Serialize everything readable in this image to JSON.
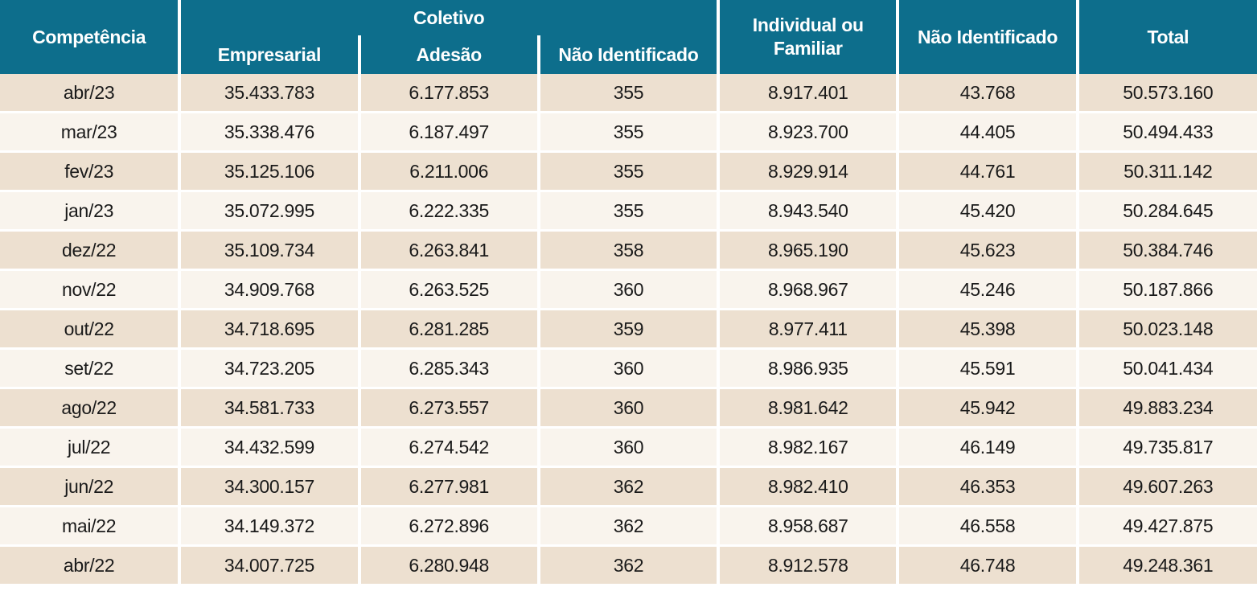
{
  "table": {
    "headers": {
      "competencia": "Competência",
      "coletivo_group": "Coletivo",
      "empresarial": "Empresarial",
      "adesao": "Adesão",
      "coletivo_nao_identificado": "Não Identificado",
      "individual_familiar": "Individual ou Familiar",
      "nao_identificado": "Não Identificado",
      "total": "Total"
    },
    "rows": [
      [
        "abr/23",
        "35.433.783",
        "6.177.853",
        "355",
        "8.917.401",
        "43.768",
        "50.573.160"
      ],
      [
        "mar/23",
        "35.338.476",
        "6.187.497",
        "355",
        "8.923.700",
        "44.405",
        "50.494.433"
      ],
      [
        "fev/23",
        "35.125.106",
        "6.211.006",
        "355",
        "8.929.914",
        "44.761",
        "50.311.142"
      ],
      [
        "jan/23",
        "35.072.995",
        "6.222.335",
        "355",
        "8.943.540",
        "45.420",
        "50.284.645"
      ],
      [
        "dez/22",
        "35.109.734",
        "6.263.841",
        "358",
        "8.965.190",
        "45.623",
        "50.384.746"
      ],
      [
        "nov/22",
        "34.909.768",
        "6.263.525",
        "360",
        "8.968.967",
        "45.246",
        "50.187.866"
      ],
      [
        "out/22",
        "34.718.695",
        "6.281.285",
        "359",
        "8.977.411",
        "45.398",
        "50.023.148"
      ],
      [
        "set/22",
        "34.723.205",
        "6.285.343",
        "360",
        "8.986.935",
        "45.591",
        "50.041.434"
      ],
      [
        "ago/22",
        "34.581.733",
        "6.273.557",
        "360",
        "8.981.642",
        "45.942",
        "49.883.234"
      ],
      [
        "jul/22",
        "34.432.599",
        "6.274.542",
        "360",
        "8.982.167",
        "46.149",
        "49.735.817"
      ],
      [
        "jun/22",
        "34.300.157",
        "6.277.981",
        "362",
        "8.982.410",
        "46.353",
        "49.607.263"
      ],
      [
        "mai/22",
        "34.149.372",
        "6.272.896",
        "362",
        "8.958.687",
        "46.558",
        "49.427.875"
      ],
      [
        "abr/22",
        "34.007.725",
        "6.280.948",
        "362",
        "8.912.578",
        "46.748",
        "49.248.361"
      ]
    ]
  },
  "colors": {
    "header_bg": "#0d6e8c",
    "header_text": "#ffffff",
    "row_odd_bg": "#ede0d0",
    "row_even_bg": "#f9f4ed",
    "separator": "#ffffff",
    "body_text": "#1a1a1a"
  },
  "chart_data": {
    "type": "table",
    "title": "",
    "categories": [
      "abr/23",
      "mar/23",
      "fev/23",
      "jan/23",
      "dez/22",
      "nov/22",
      "out/22",
      "set/22",
      "ago/22",
      "jul/22",
      "jun/22",
      "mai/22",
      "abr/22"
    ],
    "category_label": "Competência",
    "column_groups": [
      {
        "label": "Coletivo",
        "columns": [
          "Empresarial",
          "Adesão",
          "Não Identificado"
        ]
      },
      {
        "label": "",
        "columns": [
          "Individual ou Familiar",
          "Não Identificado",
          "Total"
        ]
      }
    ],
    "series": [
      {
        "name": "Coletivo Empresarial",
        "values": [
          35433783,
          35338476,
          35125106,
          35072995,
          35109734,
          34909768,
          34718695,
          34723205,
          34581733,
          34432599,
          34300157,
          34149372,
          34007725
        ]
      },
      {
        "name": "Coletivo Adesão",
        "values": [
          6177853,
          6187497,
          6211006,
          6222335,
          6263841,
          6263525,
          6281285,
          6285343,
          6273557,
          6274542,
          6277981,
          6272896,
          6280948
        ]
      },
      {
        "name": "Coletivo Não Identificado",
        "values": [
          355,
          355,
          355,
          355,
          358,
          360,
          359,
          360,
          360,
          360,
          362,
          362,
          362
        ]
      },
      {
        "name": "Individual ou Familiar",
        "values": [
          8917401,
          8923700,
          8929914,
          8943540,
          8965190,
          8968967,
          8977411,
          8986935,
          8981642,
          8982167,
          8982410,
          8958687,
          8912578
        ]
      },
      {
        "name": "Não Identificado",
        "values": [
          43768,
          44405,
          44761,
          45420,
          45623,
          45246,
          45398,
          45591,
          45942,
          46149,
          46353,
          46558,
          46748
        ]
      },
      {
        "name": "Total",
        "values": [
          50573160,
          50494433,
          50311142,
          50284645,
          50384746,
          50187866,
          50023148,
          50041434,
          49883234,
          49735817,
          49607263,
          49427875,
          49248361
        ]
      }
    ]
  }
}
